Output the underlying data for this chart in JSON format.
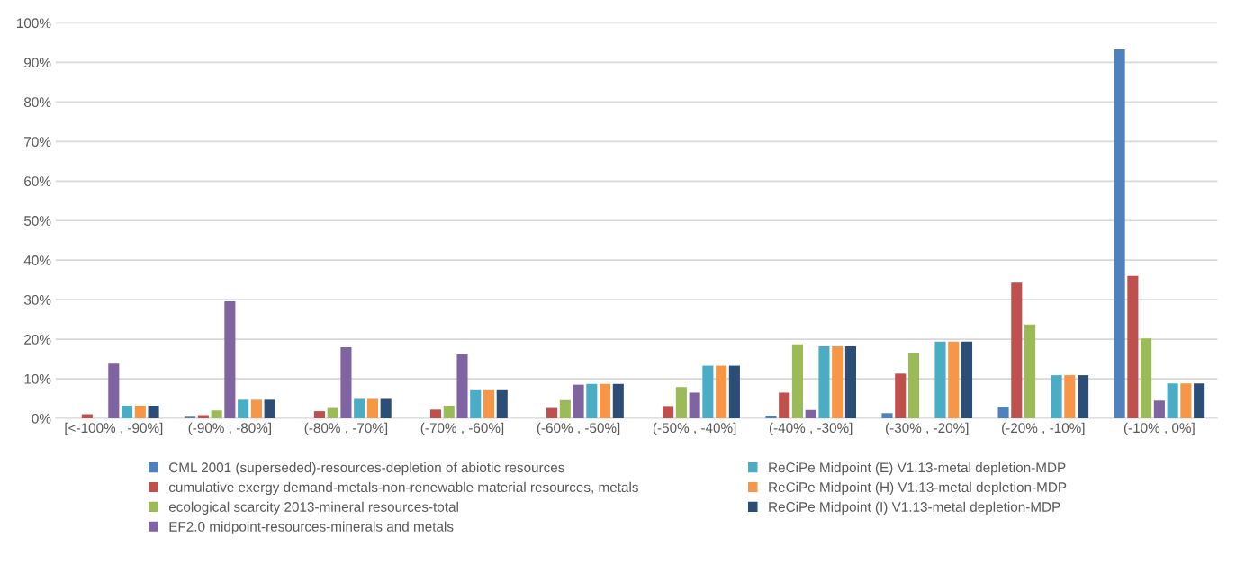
{
  "chart_data": {
    "type": "bar",
    "categories": [
      "[<-100% , -90%]",
      "(-90% , -80%]",
      "(-80% , -70%]",
      "(-70% , -60%]",
      "(-60% , -50%]",
      "(-50% , -40%]",
      "(-40% , -30%]",
      "(-30% , -20%]",
      "(-20% , -10%]",
      "(-10% , 0%]"
    ],
    "series": [
      {
        "name": "CML 2001 (superseded)-resources-depletion of abiotic resources",
        "color": "#4f81bd",
        "values": [
          0,
          0.4,
          0,
          0,
          0,
          0,
          0.6,
          1.3,
          2.9,
          93.3
        ]
      },
      {
        "name": "cumulative exergy demand-metals-non-renewable material resources, metals",
        "color": "#c0504d",
        "values": [
          1.0,
          0.8,
          1.8,
          2.2,
          2.6,
          3.1,
          6.5,
          11.3,
          34.3,
          36.0
        ]
      },
      {
        "name": "ecological scarcity 2013-mineral resources-total",
        "color": "#9bbb59",
        "values": [
          0,
          2.0,
          2.6,
          3.2,
          4.6,
          7.9,
          18.7,
          16.6,
          23.7,
          20.2
        ]
      },
      {
        "name": "EF2.0 midpoint-resources-minerals and metals",
        "color": "#8064a2",
        "values": [
          13.8,
          29.6,
          18.0,
          16.2,
          8.5,
          6.5,
          2.1,
          0,
          0,
          4.5
        ]
      },
      {
        "name": "ReCiPe Midpoint (E) V1.13-metal depletion-MDP",
        "color": "#4bacc6",
        "values": [
          3.2,
          4.7,
          4.9,
          7.1,
          8.7,
          13.3,
          18.2,
          19.4,
          10.9,
          8.8
        ]
      },
      {
        "name": "ReCiPe Midpoint (H) V1.13-metal depletion-MDP",
        "color": "#f79646",
        "values": [
          3.2,
          4.7,
          4.9,
          7.1,
          8.7,
          13.3,
          18.2,
          19.4,
          10.9,
          8.8
        ]
      },
      {
        "name": "ReCiPe Midpoint (I) V1.13-metal depletion-MDP",
        "color": "#2c4d75",
        "values": [
          3.2,
          4.7,
          4.9,
          7.1,
          8.7,
          13.3,
          18.2,
          19.4,
          10.9,
          8.8
        ]
      }
    ],
    "ylim": [
      0,
      100
    ],
    "yticks": [
      {
        "value": 0,
        "label": "0%"
      },
      {
        "value": 10,
        "label": "10%"
      },
      {
        "value": 20,
        "label": "20%"
      },
      {
        "value": 30,
        "label": "30%"
      },
      {
        "value": 40,
        "label": "40%"
      },
      {
        "value": 50,
        "label": "50%"
      },
      {
        "value": 60,
        "label": "60%"
      },
      {
        "value": 70,
        "label": "70%"
      },
      {
        "value": 80,
        "label": "80%"
      },
      {
        "value": 90,
        "label": "90%"
      },
      {
        "value": 100,
        "label": "100%"
      }
    ],
    "grid": "y",
    "legend": "bottom"
  }
}
